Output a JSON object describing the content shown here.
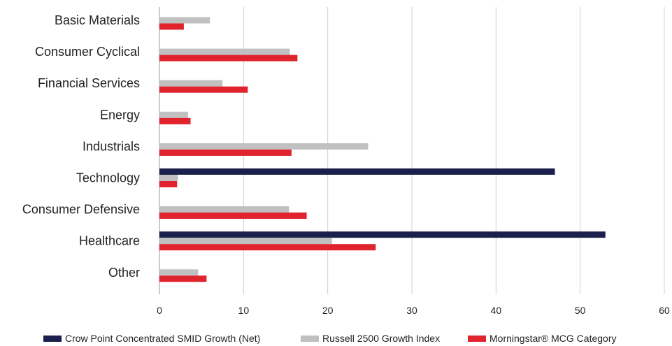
{
  "chart_data": {
    "type": "bar",
    "orientation": "horizontal",
    "categories": [
      "Basic Materials",
      "Consumer Cyclical",
      "Financial Services",
      "Energy",
      "Industrials",
      "Technology",
      "Consumer Defensive",
      "Healthcare",
      "Other"
    ],
    "series": [
      {
        "name": "Crow Point Concentrated SMID Growth (Net)",
        "color": "#1b1f4b",
        "values": [
          0,
          0,
          0,
          0,
          0,
          47.0,
          0,
          53.0,
          0
        ]
      },
      {
        "name": "Russell 2500 Growth Index",
        "color": "#c0c0c0",
        "values": [
          6.0,
          15.5,
          7.5,
          3.4,
          24.8,
          2.2,
          15.4,
          20.5,
          4.6
        ]
      },
      {
        "name": "Morningstar® MCG Category",
        "color": "#e0232c",
        "values": [
          2.9,
          16.4,
          10.5,
          3.7,
          15.7,
          2.1,
          17.5,
          25.7,
          5.6
        ]
      }
    ],
    "xlim": [
      0,
      60
    ],
    "xticks": [
      0,
      10,
      20,
      30,
      40,
      50,
      60
    ],
    "grid": "vertical",
    "legend_position": "bottom"
  }
}
